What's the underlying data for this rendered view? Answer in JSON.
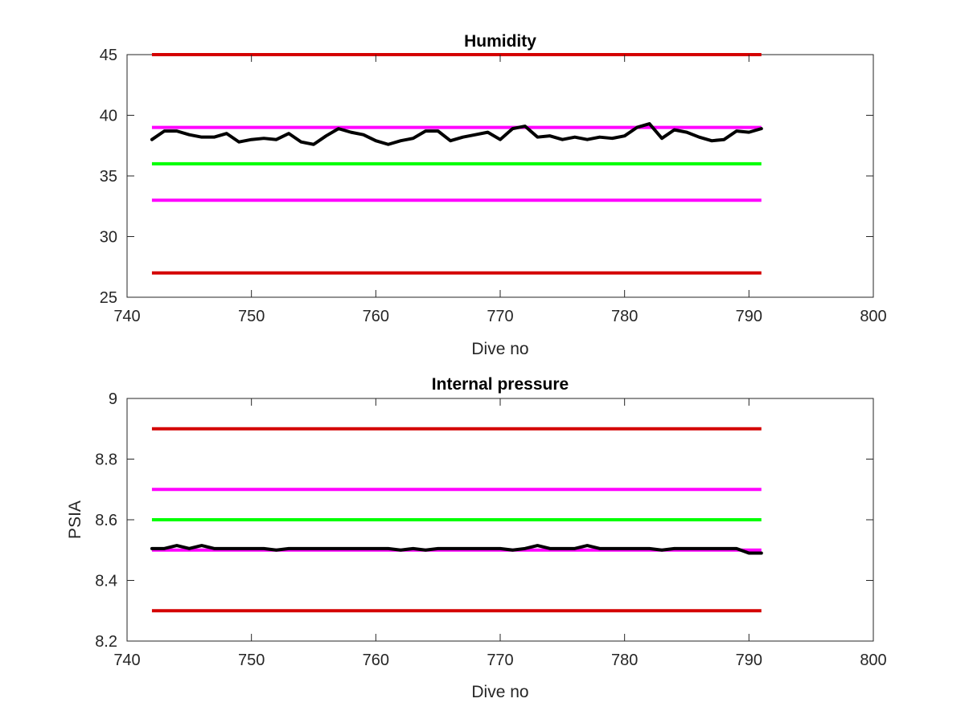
{
  "chart_data": [
    {
      "type": "line",
      "title": "Humidity",
      "xlabel": "Dive no",
      "ylabel": "",
      "xlim": [
        740,
        800
      ],
      "ylim": [
        25,
        45
      ],
      "x_ticks": [
        740,
        750,
        760,
        770,
        780,
        790,
        800
      ],
      "y_ticks": [
        25,
        30,
        35,
        40,
        45
      ],
      "x_tick_labels": [
        "740",
        "750",
        "760",
        "770",
        "780",
        "790",
        "800"
      ],
      "y_tick_labels": [
        "25",
        "30",
        "35",
        "40",
        "45"
      ],
      "grid": false,
      "colors": {
        "red": "#d40000",
        "magenta": "#ff00ff",
        "green": "#00ff00",
        "data": "#000000"
      },
      "reference_lines": [
        {
          "y": 45,
          "x": [
            742,
            791
          ],
          "color": "red"
        },
        {
          "y": 39,
          "x": [
            742,
            791
          ],
          "color": "magenta"
        },
        {
          "y": 36,
          "x": [
            742,
            791
          ],
          "color": "green"
        },
        {
          "y": 33,
          "x": [
            742,
            791
          ],
          "color": "magenta"
        },
        {
          "y": 27,
          "x": [
            742,
            791
          ],
          "color": "red"
        }
      ],
      "series": [
        {
          "color": "data",
          "x": [
            742,
            743,
            744,
            745,
            746,
            747,
            748,
            749,
            750,
            751,
            752,
            753,
            754,
            755,
            756,
            757,
            758,
            759,
            760,
            761,
            762,
            763,
            764,
            765,
            766,
            767,
            768,
            769,
            770,
            771,
            772,
            773,
            774,
            775,
            776,
            777,
            778,
            779,
            780,
            781,
            782,
            783,
            784,
            785,
            786,
            787,
            788,
            789,
            790,
            791
          ],
          "y": [
            38.0,
            38.7,
            38.7,
            38.4,
            38.2,
            38.2,
            38.5,
            37.8,
            38.0,
            38.1,
            38.0,
            38.5,
            37.8,
            37.6,
            38.3,
            38.9,
            38.6,
            38.4,
            37.9,
            37.6,
            37.9,
            38.1,
            38.7,
            38.7,
            37.9,
            38.2,
            38.4,
            38.6,
            38.0,
            38.9,
            39.1,
            38.2,
            38.3,
            38.0,
            38.2,
            38.0,
            38.2,
            38.1,
            38.3,
            39.0,
            39.3,
            38.1,
            38.8,
            38.6,
            38.2,
            37.9,
            38.0,
            38.7,
            38.6,
            38.9
          ]
        }
      ]
    },
    {
      "type": "line",
      "title": "Internal pressure",
      "xlabel": "Dive no",
      "ylabel": "PSIA",
      "xlim": [
        740,
        800
      ],
      "ylim": [
        8.2,
        9.0
      ],
      "x_ticks": [
        740,
        750,
        760,
        770,
        780,
        790,
        800
      ],
      "y_ticks": [
        8.2,
        8.4,
        8.6,
        8.8,
        9.0
      ],
      "x_tick_labels": [
        "740",
        "750",
        "760",
        "770",
        "780",
        "790",
        "800"
      ],
      "y_tick_labels": [
        "8.2",
        "8.4",
        "8.6",
        "8.8",
        "9"
      ],
      "grid": false,
      "colors": {
        "red": "#d40000",
        "magenta": "#ff00ff",
        "green": "#00ff00",
        "data": "#000000"
      },
      "reference_lines": [
        {
          "y": 8.9,
          "x": [
            742,
            791
          ],
          "color": "red"
        },
        {
          "y": 8.7,
          "x": [
            742,
            791
          ],
          "color": "magenta"
        },
        {
          "y": 8.6,
          "x": [
            742,
            791
          ],
          "color": "green"
        },
        {
          "y": 8.5,
          "x": [
            742,
            791
          ],
          "color": "magenta"
        },
        {
          "y": 8.3,
          "x": [
            742,
            791
          ],
          "color": "red"
        }
      ],
      "series": [
        {
          "color": "data",
          "x": [
            742,
            743,
            744,
            745,
            746,
            747,
            748,
            749,
            750,
            751,
            752,
            753,
            754,
            755,
            756,
            757,
            758,
            759,
            760,
            761,
            762,
            763,
            764,
            765,
            766,
            767,
            768,
            769,
            770,
            771,
            772,
            773,
            774,
            775,
            776,
            777,
            778,
            779,
            780,
            781,
            782,
            783,
            784,
            785,
            786,
            787,
            788,
            789,
            790,
            791
          ],
          "y": [
            8.505,
            8.505,
            8.515,
            8.505,
            8.515,
            8.505,
            8.505,
            8.505,
            8.505,
            8.505,
            8.5,
            8.505,
            8.505,
            8.505,
            8.505,
            8.505,
            8.505,
            8.505,
            8.505,
            8.505,
            8.5,
            8.505,
            8.5,
            8.505,
            8.505,
            8.505,
            8.505,
            8.505,
            8.505,
            8.5,
            8.505,
            8.515,
            8.505,
            8.505,
            8.505,
            8.515,
            8.505,
            8.505,
            8.505,
            8.505,
            8.505,
            8.5,
            8.505,
            8.505,
            8.505,
            8.505,
            8.505,
            8.505,
            8.49,
            8.49
          ]
        }
      ]
    }
  ]
}
